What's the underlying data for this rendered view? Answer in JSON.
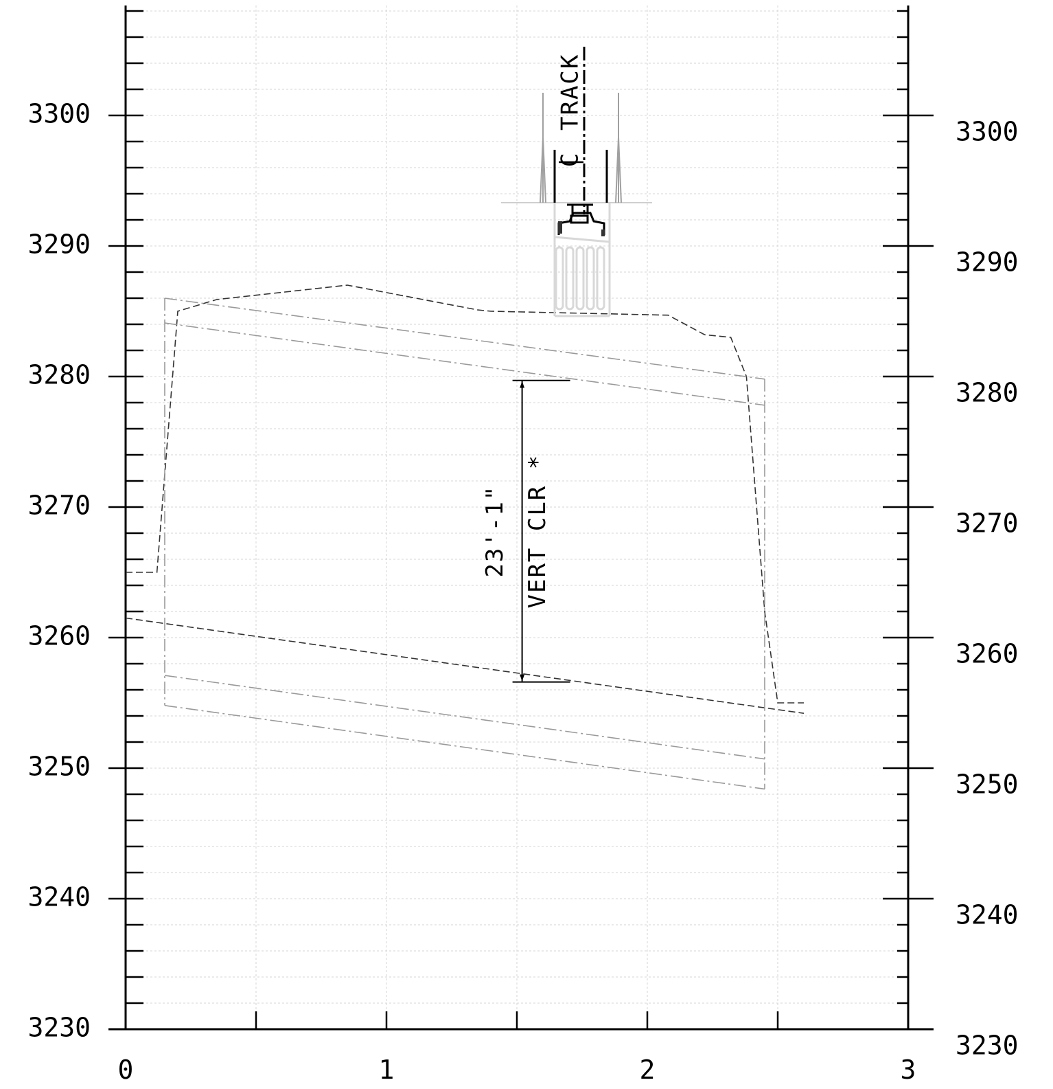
{
  "chart_data": {
    "type": "profile",
    "axes": {
      "x_ticks": [
        "0",
        "1",
        "2",
        "3"
      ],
      "left_y_ticks": [
        "3300",
        "3290",
        "3280",
        "3270",
        "3260",
        "3250",
        "3240",
        "3230"
      ],
      "right_y_ticks": [
        "3300",
        "3290",
        "3280",
        "3270",
        "3260",
        "3250",
        "3240",
        "3230"
      ],
      "xlim": [
        0,
        3
      ],
      "ylim": [
        3230,
        3308
      ],
      "grid": true
    },
    "annotations": {
      "track_label": "TRACK",
      "clearance_value": "23'-1\"",
      "clearance_label": "VERT CLR *"
    },
    "series": [
      {
        "style": "dashed",
        "points": [
          [
            0,
            3265
          ],
          [
            0.12,
            3265
          ],
          [
            0.18,
            3280
          ],
          [
            0.2,
            3285
          ],
          [
            0.35,
            3285.9
          ],
          [
            0.85,
            3287
          ],
          [
            1.35,
            3285.1
          ],
          [
            1.4,
            3285
          ],
          [
            2.08,
            3284.7
          ],
          [
            2.22,
            3283.2
          ],
          [
            2.32,
            3283
          ],
          [
            2.38,
            3280
          ],
          [
            2.45,
            3262
          ],
          [
            2.5,
            3255
          ],
          [
            2.6,
            3255
          ]
        ]
      },
      {
        "style": "dashed",
        "points": [
          [
            0,
            3261.5
          ],
          [
            2.6,
            3254.2
          ]
        ]
      },
      {
        "style": "dash-dot",
        "points": [
          [
            0.15,
            3286
          ],
          [
            2.45,
            3279.8
          ]
        ]
      },
      {
        "style": "dash-dot",
        "points": [
          [
            0.15,
            3284.1
          ],
          [
            2.45,
            3277.8
          ]
        ]
      },
      {
        "style": "dash-dot",
        "points": [
          [
            0.15,
            3257.1
          ],
          [
            2.45,
            3250.7
          ]
        ]
      },
      {
        "style": "dash-dot",
        "points": [
          [
            0.15,
            3254.8
          ],
          [
            2.45,
            3248.4
          ]
        ]
      },
      {
        "style": "dash-dot",
        "points": [
          [
            0.15,
            3286
          ],
          [
            0.15,
            3254.8
          ]
        ]
      },
      {
        "style": "dash-dot",
        "points": [
          [
            2.45,
            3279.8
          ],
          [
            2.45,
            3248.4
          ]
        ]
      }
    ],
    "dimension": {
      "x": 1.52,
      "y_top": 3279.7,
      "y_bottom": 3256.6
    },
    "track_centerline_x": 1.73
  }
}
